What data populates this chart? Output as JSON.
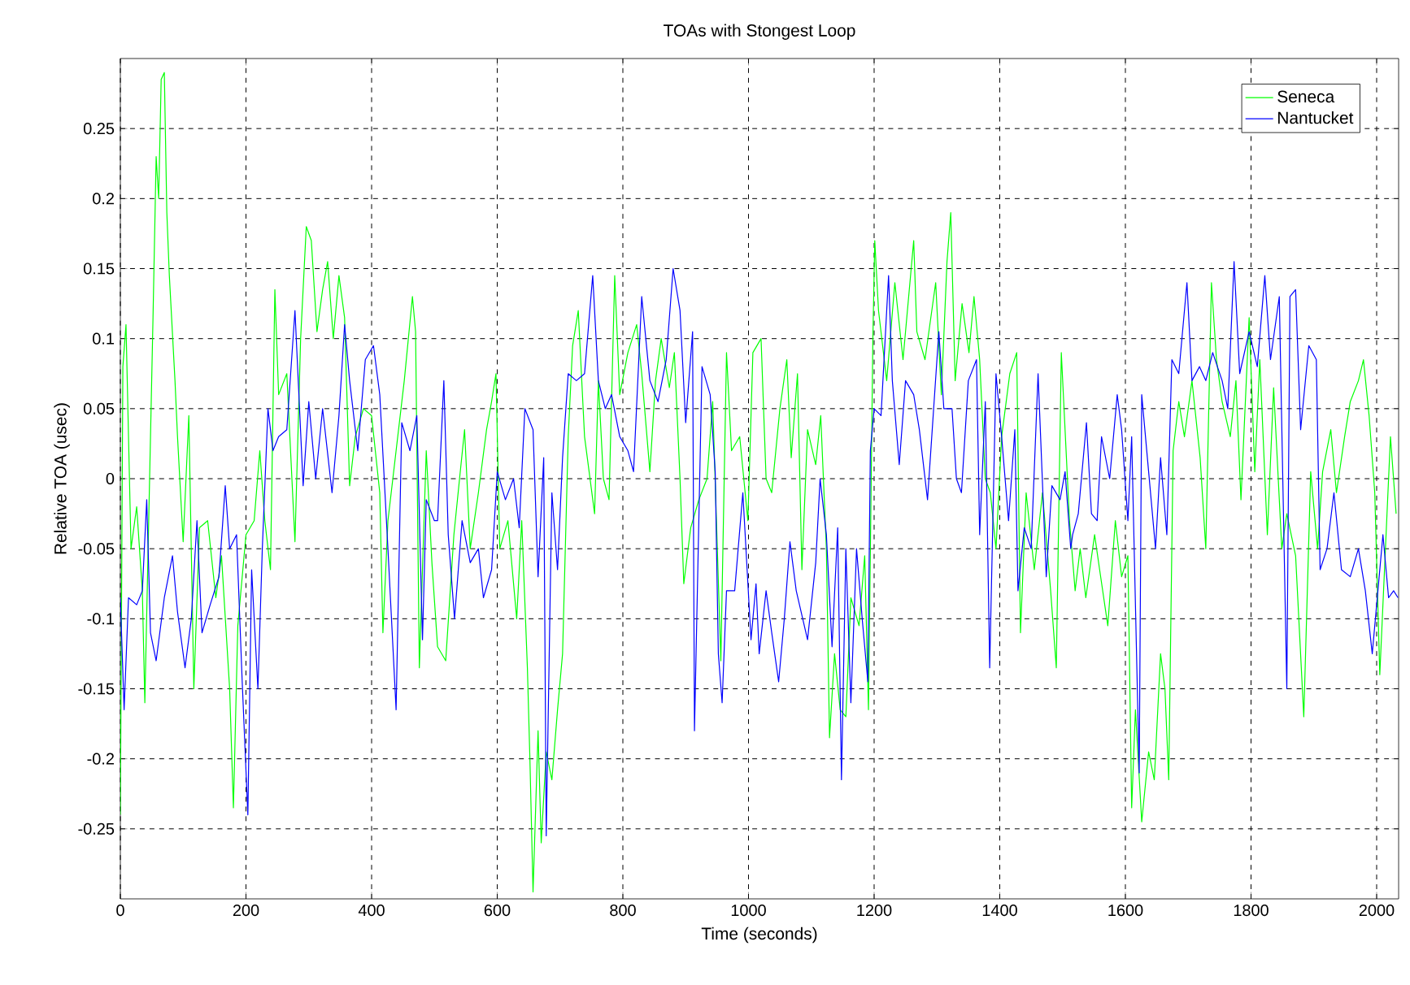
{
  "chart_data": {
    "type": "line",
    "title": "TOAs with Stongest Loop",
    "xlabel": "Time (seconds)",
    "ylabel": "Relative TOA (usec)",
    "xlim": [
      0,
      2035
    ],
    "ylim": [
      -0.3,
      0.3
    ],
    "xticks": [
      0,
      200,
      400,
      600,
      800,
      1000,
      1200,
      1400,
      1600,
      1800,
      2000
    ],
    "yticks": [
      -0.25,
      -0.2,
      -0.15,
      -0.1,
      -0.05,
      0,
      0.05,
      0.1,
      0.15,
      0.2,
      0.25
    ],
    "grid": true,
    "legend": "top right",
    "series": [
      {
        "name": "Seneca",
        "color": "#00ff00",
        "x": [
          0,
          4,
          9,
          13,
          17,
          26,
          35,
          39,
          48,
          52,
          57,
          61,
          65,
          70,
          74,
          78,
          87,
          91,
          100,
          109,
          117,
          126,
          139,
          152,
          161,
          174,
          180,
          187,
          200,
          213,
          222,
          230,
          239,
          246,
          252,
          265,
          278,
          287,
          296,
          304,
          313,
          322,
          330,
          339,
          348,
          357,
          365,
          374,
          387,
          400,
          413,
          418,
          426,
          439,
          452,
          465,
          470,
          476,
          487,
          496,
          505,
          518,
          531,
          540,
          548,
          557,
          570,
          583,
          591,
          598,
          604,
          617,
          631,
          639,
          648,
          652,
          657,
          665,
          670,
          678,
          687,
          696,
          704,
          713,
          720,
          729,
          739,
          755,
          761,
          769,
          778,
          787,
          795,
          808,
          822,
          830,
          843,
          852,
          861,
          874,
          882,
          891,
          897,
          908,
          921,
          934,
          943,
          956,
          965,
          973,
          986,
          999,
          1007,
          1020,
          1028,
          1037,
          1050,
          1061,
          1068,
          1078,
          1085,
          1094,
          1107,
          1115,
          1124,
          1129,
          1137,
          1146,
          1155,
          1163,
          1176,
          1185,
          1191,
          1198,
          1201,
          1207,
          1220,
          1233,
          1246,
          1263,
          1268,
          1281,
          1298,
          1307,
          1316,
          1322,
          1329,
          1340,
          1351,
          1359,
          1368,
          1377,
          1385,
          1394,
          1403,
          1416,
          1427,
          1433,
          1442,
          1455,
          1468,
          1481,
          1490,
          1498,
          1511,
          1520,
          1528,
          1537,
          1551,
          1559,
          1572,
          1584,
          1594,
          1604,
          1610,
          1616,
          1626,
          1637,
          1646,
          1656,
          1663,
          1669,
          1676,
          1685,
          1694,
          1706,
          1719,
          1728,
          1737,
          1745,
          1754,
          1767,
          1776,
          1784,
          1797,
          1806,
          1814,
          1826,
          1836,
          1849,
          1857,
          1871,
          1884,
          1895,
          1906,
          1914,
          1927,
          1936,
          1949,
          1958,
          1971,
          1979,
          1988,
          1997,
          2005,
          2014,
          2022,
          2031
        ],
        "values": [
          -0.24,
          0.08,
          0.11,
          0.03,
          -0.05,
          -0.02,
          -0.08,
          -0.16,
          0.03,
          0.115,
          0.23,
          0.2,
          0.285,
          0.29,
          0.19,
          0.145,
          0.07,
          0.03,
          -0.045,
          0.045,
          -0.15,
          -0.035,
          -0.03,
          -0.085,
          -0.055,
          -0.15,
          -0.235,
          -0.105,
          -0.04,
          -0.03,
          0.02,
          -0.03,
          -0.065,
          0.135,
          0.06,
          0.075,
          -0.045,
          0.1,
          0.18,
          0.17,
          0.105,
          0.135,
          0.155,
          0.1,
          0.145,
          0.115,
          -0.005,
          0.03,
          0.05,
          0.045,
          -0.01,
          -0.11,
          -0.03,
          0.02,
          0.07,
          0.13,
          0.105,
          -0.135,
          0.02,
          -0.06,
          -0.12,
          -0.13,
          -0.04,
          0,
          0.035,
          -0.05,
          -0.01,
          0.035,
          0.055,
          0.075,
          -0.05,
          -0.03,
          -0.1,
          -0.03,
          -0.135,
          -0.2,
          -0.295,
          -0.18,
          -0.26,
          -0.195,
          -0.215,
          -0.165,
          -0.125,
          0.03,
          0.095,
          0.12,
          0.03,
          -0.025,
          0.07,
          0,
          -0.015,
          0.145,
          0.06,
          0.09,
          0.11,
          0.075,
          0.005,
          0.07,
          0.1,
          0.065,
          0.09,
          0,
          -0.075,
          -0.035,
          -0.015,
          0,
          0.055,
          -0.13,
          0.09,
          0.02,
          0.03,
          -0.03,
          0.09,
          0.1,
          0,
          -0.01,
          0.05,
          0.085,
          0.015,
          0.075,
          -0.065,
          0.035,
          0.01,
          0.045,
          -0.05,
          -0.185,
          -0.125,
          -0.165,
          -0.17,
          -0.085,
          -0.105,
          -0.055,
          -0.165,
          0.1,
          0.17,
          0.12,
          0.07,
          0.14,
          0.085,
          0.17,
          0.105,
          0.085,
          0.14,
          0.06,
          0.155,
          0.19,
          0.07,
          0.125,
          0.09,
          0.13,
          0.085,
          0,
          -0.01,
          -0.05,
          0.03,
          0.075,
          0.09,
          -0.11,
          -0.01,
          -0.065,
          -0.01,
          -0.08,
          -0.135,
          0.09,
          -0.03,
          -0.08,
          -0.05,
          -0.085,
          -0.04,
          -0.065,
          -0.105,
          -0.03,
          -0.07,
          -0.055,
          -0.235,
          -0.165,
          -0.245,
          -0.195,
          -0.215,
          -0.125,
          -0.15,
          -0.215,
          0.02,
          0.055,
          0.03,
          0.07,
          0.015,
          -0.05,
          0.14,
          0.085,
          0.055,
          0.03,
          0.07,
          -0.015,
          0.115,
          0.005,
          0.085,
          -0.04,
          0.065,
          -0.05,
          -0.025,
          -0.055,
          -0.17,
          0.005,
          -0.05,
          0.005,
          0.035,
          -0.01,
          0.03,
          0.055,
          0.07,
          0.085,
          0.045,
          -0.01,
          -0.14,
          -0.05,
          0.03,
          -0.025
        ]
      },
      {
        "name": "Nantucket",
        "color": "#0000ff",
        "x": [
          0,
          6,
          13,
          26,
          35,
          42,
          48,
          57,
          70,
          83,
          91,
          103,
          113,
          122,
          130,
          143,
          157,
          167,
          174,
          185,
          194,
          203,
          209,
          219,
          226,
          235,
          243,
          252,
          265,
          278,
          291,
          300,
          311,
          322,
          337,
          348,
          357,
          365,
          378,
          390,
          403,
          413,
          426,
          439,
          448,
          461,
          472,
          481,
          487,
          500,
          505,
          515,
          522,
          532,
          544,
          557,
          570,
          578,
          591,
          600,
          613,
          626,
          635,
          644,
          657,
          665,
          674,
          678,
          687,
          696,
          704,
          713,
          726,
          739,
          752,
          761,
          772,
          782,
          795,
          808,
          817,
          830,
          843,
          856,
          869,
          880,
          891,
          900,
          911,
          914,
          926,
          939,
          947,
          952,
          958,
          965,
          978,
          991,
          1004,
          1012,
          1017,
          1028,
          1037,
          1048,
          1057,
          1066,
          1076,
          1094,
          1107,
          1114,
          1124,
          1133,
          1142,
          1148,
          1155,
          1163,
          1172,
          1181,
          1190,
          1194,
          1200,
          1211,
          1223,
          1229,
          1240,
          1250,
          1263,
          1272,
          1285,
          1294,
          1303,
          1311,
          1324,
          1331,
          1339,
          1350,
          1363,
          1368,
          1377,
          1384,
          1394,
          1403,
          1414,
          1424,
          1429,
          1439,
          1450,
          1461,
          1474,
          1483,
          1496,
          1504,
          1513,
          1516,
          1525,
          1538,
          1546,
          1555,
          1562,
          1575,
          1587,
          1594,
          1604,
          1610,
          1622,
          1626,
          1637,
          1648,
          1656,
          1666,
          1674,
          1685,
          1698,
          1706,
          1718,
          1728,
          1739,
          1754,
          1763,
          1773,
          1782,
          1797,
          1810,
          1822,
          1831,
          1845,
          1857,
          1862,
          1871,
          1879,
          1892,
          1904,
          1910,
          1921,
          1932,
          1944,
          1958,
          1971,
          1982,
          1993,
          2002,
          2010,
          2019,
          2027,
          2034
        ],
        "values": [
          -0.085,
          -0.165,
          -0.085,
          -0.09,
          -0.08,
          -0.015,
          -0.11,
          -0.13,
          -0.085,
          -0.055,
          -0.095,
          -0.135,
          -0.1,
          -0.03,
          -0.11,
          -0.09,
          -0.07,
          -0.005,
          -0.05,
          -0.04,
          -0.145,
          -0.24,
          -0.065,
          -0.15,
          -0.05,
          0.05,
          0.02,
          0.03,
          0.035,
          0.12,
          -0.005,
          0.055,
          0,
          0.05,
          -0.01,
          0.045,
          0.11,
          0.07,
          0.02,
          0.085,
          0.095,
          0.06,
          -0.05,
          -0.165,
          0.04,
          0.02,
          0.045,
          -0.115,
          -0.015,
          -0.03,
          -0.03,
          0.07,
          -0.04,
          -0.1,
          -0.03,
          -0.06,
          -0.05,
          -0.085,
          -0.065,
          0.005,
          -0.015,
          0,
          -0.035,
          0.05,
          0.035,
          -0.07,
          0.015,
          -0.255,
          -0.01,
          -0.065,
          0.015,
          0.075,
          0.07,
          0.075,
          0.145,
          0.07,
          0.05,
          0.06,
          0.03,
          0.02,
          0.005,
          0.13,
          0.07,
          0.055,
          0.085,
          0.15,
          0.12,
          0.04,
          0.105,
          -0.18,
          0.08,
          0.06,
          0.005,
          -0.125,
          -0.16,
          -0.08,
          -0.08,
          -0.01,
          -0.115,
          -0.075,
          -0.125,
          -0.08,
          -0.11,
          -0.145,
          -0.1,
          -0.045,
          -0.08,
          -0.115,
          -0.06,
          0,
          -0.04,
          -0.12,
          -0.035,
          -0.215,
          -0.05,
          -0.16,
          -0.05,
          -0.1,
          -0.145,
          0.02,
          0.05,
          0.045,
          0.145,
          0.07,
          0.01,
          0.07,
          0.06,
          0.035,
          -0.015,
          0.045,
          0.105,
          0.05,
          0.05,
          0,
          -0.01,
          0.07,
          0.085,
          -0.04,
          0.055,
          -0.135,
          0.075,
          0.03,
          -0.03,
          0.035,
          -0.08,
          -0.035,
          -0.05,
          0.075,
          -0.07,
          -0.005,
          -0.015,
          0.005,
          -0.05,
          -0.04,
          -0.025,
          0.04,
          -0.025,
          -0.03,
          0.03,
          0,
          0.06,
          0.035,
          -0.03,
          0.03,
          -0.21,
          0.06,
          0.005,
          -0.05,
          0.015,
          -0.04,
          0.085,
          0.075,
          0.14,
          0.07,
          0.08,
          0.07,
          0.09,
          0.07,
          0.05,
          0.155,
          0.075,
          0.105,
          0.08,
          0.145,
          0.085,
          0.13,
          -0.15,
          0.13,
          0.135,
          0.035,
          0.095,
          0.085,
          -0.065,
          -0.05,
          -0.01,
          -0.065,
          -0.07,
          -0.05,
          -0.08,
          -0.125,
          -0.08,
          -0.04,
          -0.085,
          -0.08,
          -0.085
        ]
      }
    ]
  }
}
